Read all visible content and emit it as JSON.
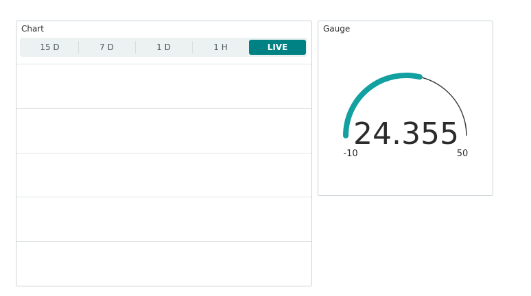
{
  "chart": {
    "title": "Chart",
    "ranges": [
      "15 D",
      "7 D",
      "1 D",
      "1 H",
      "LIVE"
    ],
    "active_range": "LIVE"
  },
  "gauge": {
    "title": "Gauge",
    "value": 24.355,
    "value_text": "24.355",
    "min": -10,
    "max": 50,
    "min_label": "-10",
    "max_label": "50",
    "accent_color": "#12a0a0",
    "track_color": "#3c4043"
  }
}
